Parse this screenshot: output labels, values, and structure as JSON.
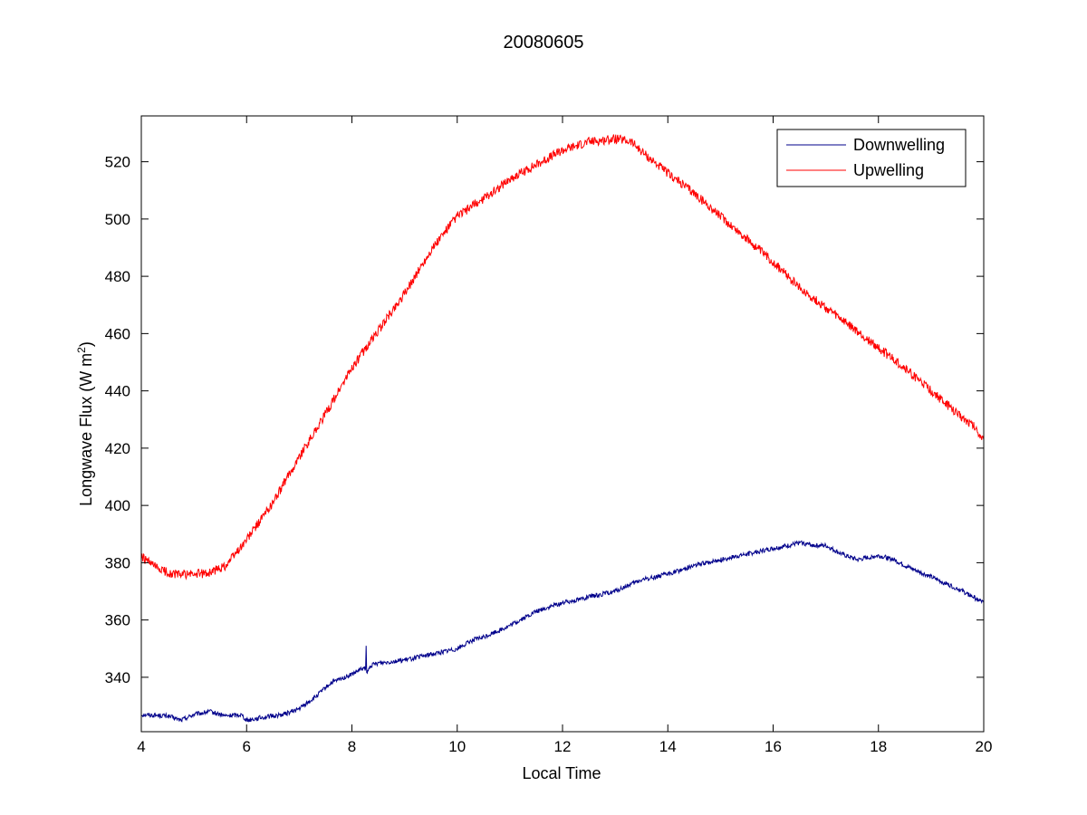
{
  "chart_data": {
    "type": "line",
    "title": "20080605",
    "xlabel": "Local Time",
    "ylabel_main": "Longwave Flux (W m",
    "ylabel_sup": "2",
    "ylabel_close": ")",
    "xlim": [
      4,
      20
    ],
    "ylim": [
      321,
      536
    ],
    "xticks": [
      4,
      6,
      8,
      10,
      12,
      14,
      16,
      18,
      20
    ],
    "yticks": [
      340,
      360,
      380,
      400,
      420,
      440,
      460,
      480,
      500,
      520
    ],
    "grid": false,
    "box": true,
    "legend_position": "top-right",
    "series": [
      {
        "name": "Downwelling",
        "color": "#00008b",
        "noise": 0.8,
        "x": [
          4.0,
          4.5,
          4.75,
          5.0,
          5.3,
          5.6,
          5.9,
          6.0,
          6.3,
          6.7,
          7.0,
          7.3,
          7.6,
          8.0,
          8.2,
          8.26,
          8.27,
          8.28,
          8.35,
          8.5,
          9.0,
          9.5,
          10.0,
          10.3,
          10.5,
          11.0,
          11.5,
          12.0,
          12.5,
          13.0,
          13.5,
          14.0,
          14.5,
          15.0,
          15.5,
          16.0,
          16.3,
          16.5,
          16.8,
          17.0,
          17.3,
          17.6,
          18.0,
          18.3,
          18.5,
          19.0,
          19.5,
          20.0
        ],
        "y": [
          327,
          326.5,
          325,
          327,
          328,
          326.5,
          327,
          325,
          326,
          327,
          329,
          333,
          338,
          341,
          343,
          343,
          351,
          341,
          344,
          345,
          346,
          348,
          350,
          353,
          354,
          358,
          363,
          366,
          368,
          370,
          374,
          376,
          379,
          381,
          383,
          385,
          386,
          387,
          386,
          386,
          383,
          381,
          382.5,
          381,
          379,
          375,
          371,
          366
        ]
      },
      {
        "name": "Upwelling",
        "color": "#ff0000",
        "noise": 1.6,
        "x": [
          4.0,
          4.3,
          4.6,
          5.0,
          5.3,
          5.6,
          6.0,
          6.5,
          7.0,
          7.5,
          8.0,
          8.5,
          9.0,
          9.5,
          10.0,
          10.5,
          11.0,
          11.5,
          12.0,
          12.5,
          13.0,
          13.3,
          13.6,
          14.0,
          14.5,
          15.0,
          15.5,
          16.0,
          16.5,
          17.0,
          17.5,
          18.0,
          18.5,
          19.0,
          19.5,
          19.8,
          20.0
        ],
        "y": [
          382,
          378,
          376,
          376,
          376.5,
          379,
          388,
          401,
          417,
          432,
          448,
          461,
          474,
          489,
          501,
          507,
          514,
          519,
          524,
          527,
          528,
          527,
          522,
          516,
          509,
          501,
          493,
          485,
          476,
          469,
          462,
          455,
          448,
          440,
          432,
          428,
          423
        ]
      }
    ]
  }
}
